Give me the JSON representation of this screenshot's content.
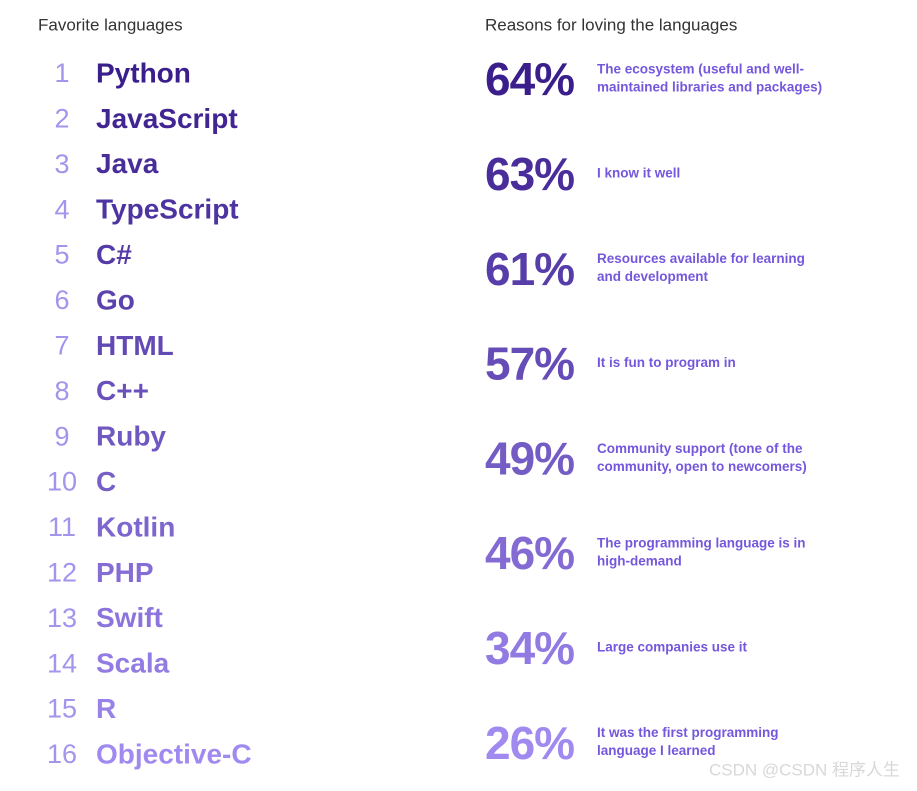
{
  "left": {
    "title": "Favorite languages",
    "items": [
      {
        "rank": "1",
        "name": "Python"
      },
      {
        "rank": "2",
        "name": "JavaScript"
      },
      {
        "rank": "3",
        "name": "Java"
      },
      {
        "rank": "4",
        "name": "TypeScript"
      },
      {
        "rank": "5",
        "name": "C#"
      },
      {
        "rank": "6",
        "name": "Go"
      },
      {
        "rank": "7",
        "name": "HTML"
      },
      {
        "rank": "8",
        "name": "C++"
      },
      {
        "rank": "9",
        "name": "Ruby"
      },
      {
        "rank": "10",
        "name": "C"
      },
      {
        "rank": "11",
        "name": "Kotlin"
      },
      {
        "rank": "12",
        "name": "PHP"
      },
      {
        "rank": "13",
        "name": "Swift"
      },
      {
        "rank": "14",
        "name": "Scala"
      },
      {
        "rank": "15",
        "name": "R"
      },
      {
        "rank": "16",
        "name": "Objective-C"
      }
    ]
  },
  "right": {
    "title": "Reasons for loving the languages",
    "items": [
      {
        "percent": "64%",
        "lines": [
          "The ecosystem (useful and well-",
          "maintained libraries and packages)"
        ]
      },
      {
        "percent": "63%",
        "lines": [
          "I know it well"
        ]
      },
      {
        "percent": "61%",
        "lines": [
          "Resources available for learning",
          "and development"
        ]
      },
      {
        "percent": "57%",
        "lines": [
          "It is fun to program in"
        ]
      },
      {
        "percent": "49%",
        "lines": [
          "Community support (tone of the",
          "community, open to newcomers)"
        ]
      },
      {
        "percent": "46%",
        "lines": [
          "The programming language is in",
          "high-demand"
        ]
      },
      {
        "percent": "34%",
        "lines": [
          "Large companies use it"
        ]
      },
      {
        "percent": "26%",
        "lines": [
          "It was the first programming",
          "language I learned"
        ]
      }
    ]
  },
  "watermark": "CSDN @CSDN 程序人生"
}
